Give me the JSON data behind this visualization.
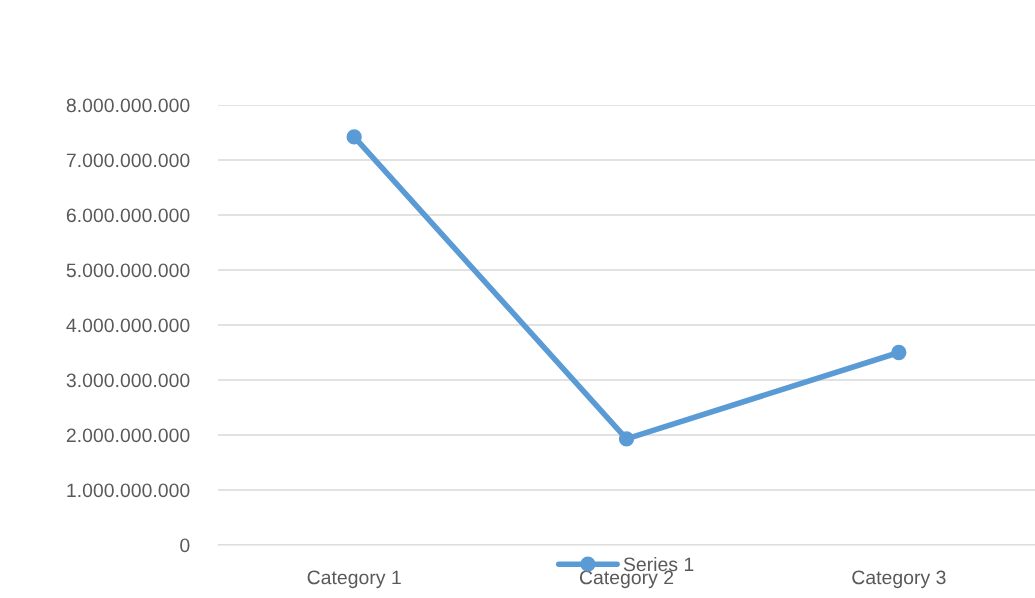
{
  "chart_data": {
    "type": "line",
    "categories": [
      "Category 1",
      "Category 2",
      "Category 3"
    ],
    "series": [
      {
        "name": "Series 1",
        "color": "#5b9bd5",
        "values": [
          7420000000,
          1930000000,
          3500000000
        ]
      }
    ],
    "ylim": [
      0,
      8000000000
    ],
    "yticks": [
      0,
      {
        "value": 1000000000,
        "label": "1.000.000.000"
      },
      {
        "value": 2000000000,
        "label": "2.000.000.000"
      },
      {
        "value": 3000000000,
        "label": "3.000.000.000"
      },
      {
        "value": 4000000000,
        "label": "4.000.000.000"
      },
      {
        "value": 5000000000,
        "label": "5.000.000.000"
      },
      {
        "value": 6000000000,
        "label": "6.000.000.000"
      },
      {
        "value": 7000000000,
        "label": "7.000.000.000"
      },
      {
        "value": 8000000000,
        "label": "8.000.000.000"
      }
    ],
    "grid": "y",
    "legend": "bottom",
    "marker": "circle",
    "line_style": "solid"
  }
}
